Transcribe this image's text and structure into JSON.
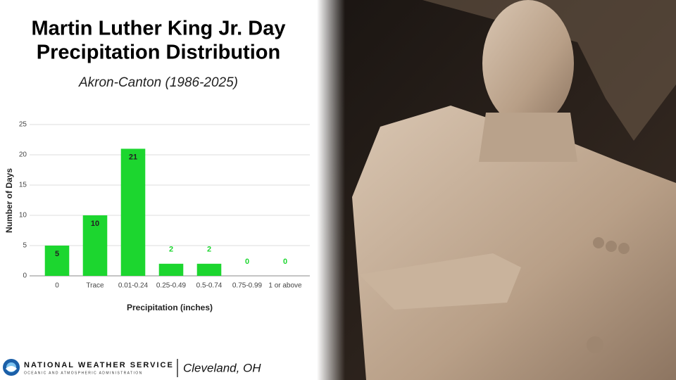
{
  "chart_data": {
    "type": "bar",
    "title": [
      "Martin Luther King Jr. Day",
      "Precipitation Distribution"
    ],
    "subtitle": "Akron-Canton (1986-2025)",
    "categories": [
      "0",
      "Trace",
      "0.01-0.24",
      "0.25-0.49",
      "0.5-0.74",
      "0.75-0.99",
      "1 or above"
    ],
    "values": [
      5,
      10,
      21,
      2,
      2,
      0,
      0
    ],
    "color": "#1cd62f",
    "xlabel": "Precipitation (inches)",
    "ylabel": "Number of Days",
    "ylim": [
      0,
      25
    ],
    "yticks": [
      0,
      5,
      10,
      15,
      20,
      25
    ],
    "grid": true
  },
  "footer": {
    "agency": "NATIONAL WEATHER SERVICE",
    "agency_sub": "OCEANIC AND ATMOSPHERIC ADMINISTRATION",
    "office": "Cleveland, OH"
  }
}
